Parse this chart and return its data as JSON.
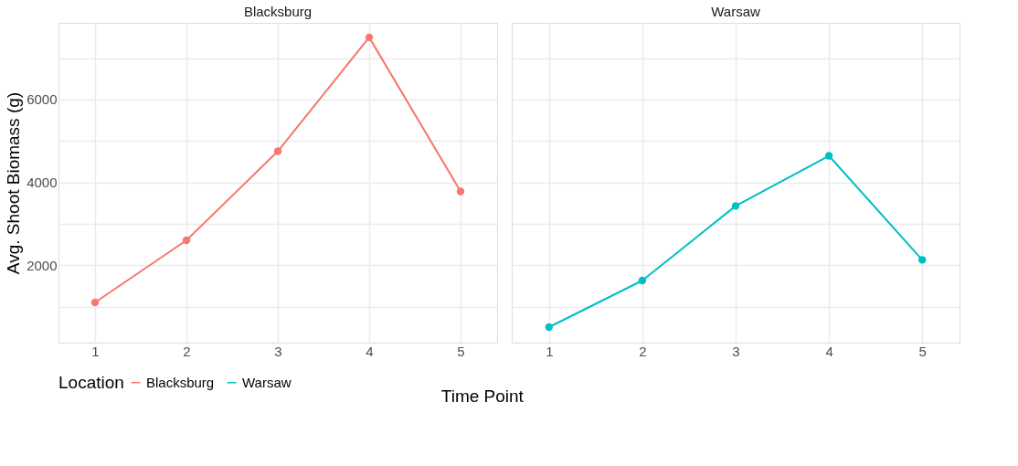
{
  "chart_data": [
    {
      "type": "line",
      "title": "Blacksburg",
      "ylabel": "Avg. Shoot Biomass (g)",
      "xlabel": "Time Point",
      "legend_title": "Location",
      "legend": "bottom",
      "grid": true,
      "marker": "circle",
      "line_style": "solid",
      "x": [
        1,
        2,
        3,
        4,
        5
      ],
      "xlim": [
        0.6,
        5.4
      ],
      "xticks": [
        1,
        2,
        3,
        4,
        5
      ],
      "ylim": [
        130,
        7850
      ],
      "yticks": [
        {
          "value": 1000,
          "label": null
        },
        2000,
        {
          "value": 3000,
          "label": null
        },
        4000,
        {
          "value": 5000,
          "label": null
        },
        6000,
        {
          "value": 7000,
          "label": null
        }
      ],
      "series": [
        {
          "name": "Blacksburg",
          "color": "#f8766d",
          "values": [
            1100,
            2600,
            4750,
            7500,
            3780
          ]
        }
      ]
    },
    {
      "type": "line",
      "title": "Warsaw",
      "legend": "bottom",
      "grid": true,
      "marker": "circle",
      "line_style": "solid",
      "tick_labels": "x",
      "x": [
        1,
        2,
        3,
        4,
        5
      ],
      "xlim": [
        0.6,
        5.4
      ],
      "xticks": [
        1,
        2,
        3,
        4,
        5
      ],
      "ylim": [
        130,
        7850
      ],
      "yticks": [
        {
          "value": 1000,
          "label": null
        },
        2000,
        {
          "value": 3000,
          "label": null
        },
        4000,
        {
          "value": 5000,
          "label": null
        },
        6000,
        {
          "value": 7000,
          "label": null
        }
      ],
      "series": [
        {
          "name": "Warsaw",
          "color": "#00bfc4",
          "values": [
            505,
            1630,
            3430,
            4640,
            2130
          ]
        }
      ]
    }
  ]
}
